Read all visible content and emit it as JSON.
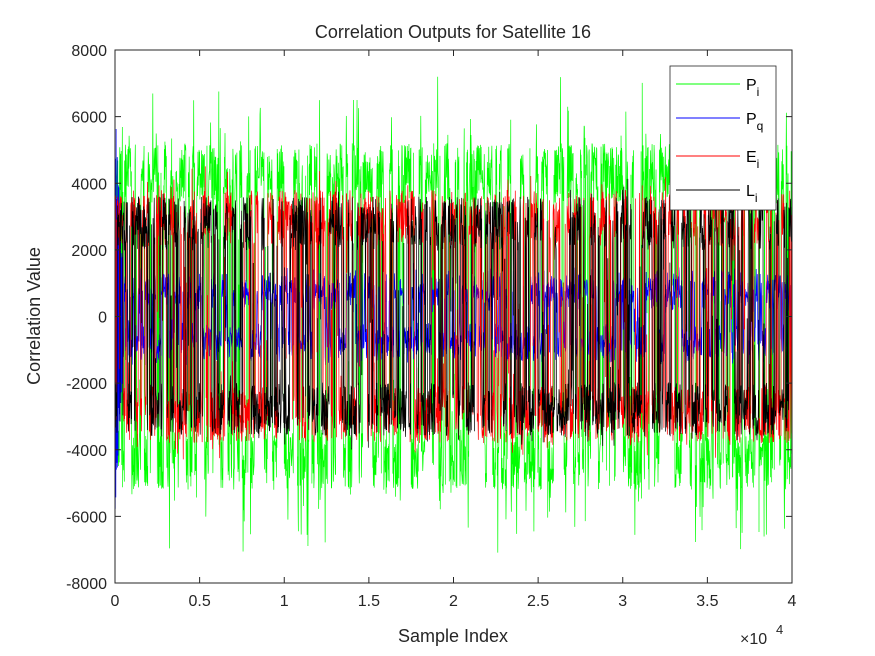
{
  "chart_data": {
    "type": "line",
    "title": "Correlation Outputs for Satellite 16",
    "xlabel": "Sample Index",
    "ylabel": "Correlation Value",
    "x_exponent_label": "×10",
    "x_exponent_power": "4",
    "xlim": [
      0,
      40000
    ],
    "ylim": [
      -8000,
      8000
    ],
    "xticks": [
      0,
      5000,
      10000,
      15000,
      20000,
      25000,
      30000,
      35000,
      40000
    ],
    "xtick_labels": [
      "0",
      "0.5",
      "1",
      "1.5",
      "2",
      "2.5",
      "3",
      "3.5",
      "4"
    ],
    "yticks": [
      -8000,
      -6000,
      -4000,
      -2000,
      0,
      2000,
      4000,
      6000,
      8000
    ],
    "ytick_labels": [
      "-8000",
      "-6000",
      "-4000",
      "-2000",
      "0",
      "2000",
      "4000",
      "6000",
      "8000"
    ],
    "grid": false,
    "legend_position": "top-right",
    "series": [
      {
        "name": "P",
        "subscript": "i",
        "color": "#00ff00",
        "envelope": {
          "max_amplitude": 7300,
          "typical_amplitude": 5200,
          "inner_floor": 3400,
          "peak_value": 7300,
          "min_value": -8000
        }
      },
      {
        "name": "P",
        "subscript": "q",
        "color": "#0000ff",
        "envelope": {
          "max_amplitude": 1700,
          "typical_amplitude": 1200,
          "startup_peak": 6400,
          "startup_trough": -6000,
          "startup_end_x": 500
        }
      },
      {
        "name": "E",
        "subscript": "i",
        "color": "#ff0000",
        "envelope": {
          "max_amplitude": 4600,
          "typical_amplitude": 3800
        }
      },
      {
        "name": "L",
        "subscript": "i",
        "color": "#000000",
        "envelope": {
          "max_amplitude": 4200,
          "typical_amplitude": 3600
        }
      }
    ]
  }
}
